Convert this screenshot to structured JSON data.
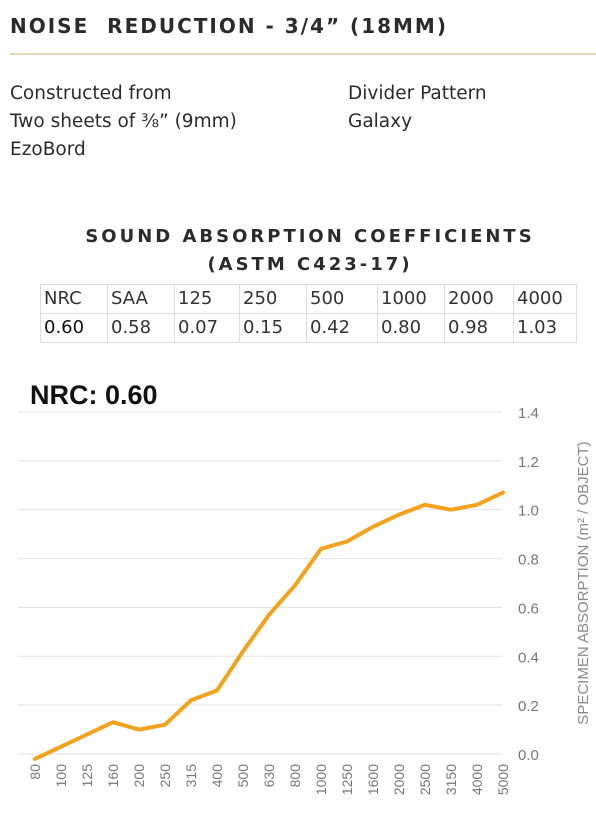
{
  "header": {
    "title": "NOISE  REDUCTION - 3/4” (18MM)"
  },
  "description": {
    "left_lines": [
      "Constructed from",
      "Two sheets of ⅜” (9mm)",
      "EzoBord"
    ],
    "right_lines": [
      "Divider Pattern",
      "Galaxy"
    ]
  },
  "coefficients": {
    "title_line1": "SOUND ABSORPTION COEFFICIENTS",
    "title_line2": "(ASTM C423-17)",
    "headers": [
      "NRC",
      "SAA",
      "125",
      "250",
      "500",
      "1000",
      "2000",
      "4000"
    ],
    "values": [
      "0.60",
      "0.58",
      "0.07",
      "0.15",
      "0.42",
      "0.80",
      "0.98",
      "1.03"
    ]
  },
  "nrc_label": "NRC: 0.60",
  "colors": {
    "line": "#f4a21c",
    "grid": "#e3e3e3",
    "axis_text": "#777777",
    "rule": "#e8d8b0"
  },
  "chart_data": {
    "type": "line",
    "categories": [
      "80",
      "100",
      "125",
      "160",
      "200",
      "250",
      "315",
      "400",
      "500",
      "630",
      "800",
      "1000",
      "1250",
      "1600",
      "2000",
      "2500",
      "3150",
      "4000",
      "5000"
    ],
    "series": [
      {
        "values": [
          -0.02,
          0.03,
          0.08,
          0.13,
          0.1,
          0.12,
          0.22,
          0.26,
          0.42,
          0.57,
          0.69,
          0.84,
          0.87,
          0.93,
          0.98,
          1.02,
          1.0,
          1.02,
          1.07
        ]
      }
    ],
    "title": "",
    "xlabel": "",
    "ylabel": "SPECIMEN ABSORPTION (m² / OBJECT)",
    "ylim": [
      0,
      1.4
    ],
    "yticks": [
      "0.0",
      "0.2",
      "0.4",
      "0.6",
      "0.8",
      "1.0",
      "1.2",
      "1.4"
    ],
    "grid": true,
    "y_axis_position": "right"
  }
}
